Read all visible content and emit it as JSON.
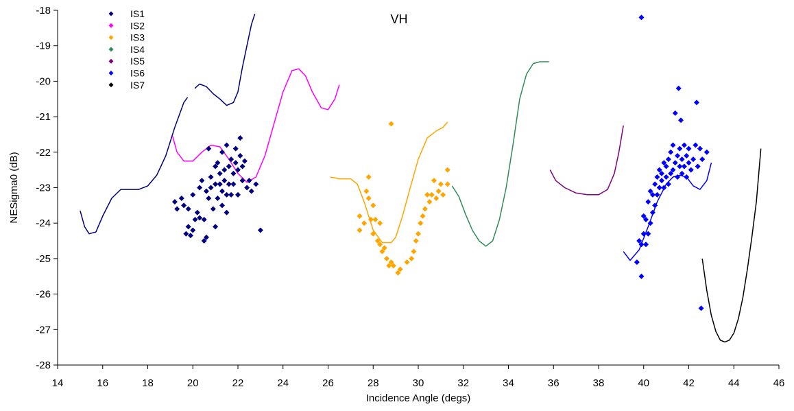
{
  "chart_data": {
    "type": "scatter",
    "title": "VH",
    "xlabel": "Incidence Angle (degs)",
    "ylabel": "NESigma0 (dB)",
    "xlim": [
      14,
      46
    ],
    "ylim": [
      -28,
      -18
    ],
    "xticks": [
      14,
      16,
      18,
      20,
      22,
      24,
      26,
      28,
      30,
      32,
      34,
      36,
      38,
      40,
      42,
      44,
      46
    ],
    "yticks": [
      -18,
      -19,
      -20,
      -21,
      -22,
      -23,
      -24,
      -25,
      -26,
      -27,
      -28
    ],
    "grid": false,
    "legend_position": "top-left",
    "legend": [
      {
        "name": "IS1",
        "color": "#000080"
      },
      {
        "name": "IS2",
        "color": "#ff00ff"
      },
      {
        "name": "IS3",
        "color": "#ffa500"
      },
      {
        "name": "IS4",
        "color": "#2e8b57"
      },
      {
        "name": "IS5",
        "color": "#800080"
      },
      {
        "name": "IS6",
        "color": "#0000ff"
      },
      {
        "name": "IS7",
        "color": "#000000"
      }
    ],
    "lines": [
      {
        "color": "#000080",
        "x": [
          15.0,
          15.2,
          15.4,
          15.7,
          16.0,
          16.4,
          16.8,
          17.2,
          17.6,
          18.0,
          18.4,
          18.8,
          19.2,
          19.6,
          20.0,
          20.3,
          20.6,
          20.9,
          21.2,
          21.5,
          21.8,
          22.0,
          22.2,
          22.4,
          22.6,
          22.75
        ],
        "y": [
          -23.65,
          -24.1,
          -24.3,
          -24.25,
          -23.8,
          -23.3,
          -23.05,
          -23.05,
          -23.05,
          -22.95,
          -22.65,
          -22.1,
          -21.3,
          -20.6,
          -20.25,
          -20.08,
          -20.15,
          -20.35,
          -20.5,
          -20.68,
          -20.6,
          -20.3,
          -19.6,
          -19.0,
          -18.4,
          -18.1
        ]
      },
      {
        "color": "#ff00ff",
        "x": [
          19.1,
          19.3,
          19.6,
          20.0,
          20.4,
          20.8,
          21.2,
          21.6,
          22.0,
          22.4,
          22.8,
          23.2,
          23.6,
          24.0,
          24.4,
          24.7,
          25.0,
          25.3,
          25.7,
          26.0,
          26.3,
          26.5
        ],
        "y": [
          -21.55,
          -22.0,
          -22.25,
          -22.25,
          -22.0,
          -21.8,
          -21.85,
          -22.2,
          -22.6,
          -22.85,
          -22.7,
          -22.1,
          -21.2,
          -20.3,
          -19.7,
          -19.65,
          -19.85,
          -20.3,
          -20.75,
          -20.8,
          -20.5,
          -20.1
        ]
      },
      {
        "color": "#ffa500",
        "x": [
          26.1,
          26.5,
          27.0,
          27.3,
          27.6,
          28.0,
          28.4,
          28.8,
          29.0,
          29.3,
          29.6,
          30.0,
          30.4,
          30.8,
          31.1,
          31.3
        ],
        "y": [
          -22.7,
          -22.75,
          -22.75,
          -22.9,
          -23.4,
          -24.2,
          -24.55,
          -24.55,
          -24.4,
          -23.8,
          -23.1,
          -22.2,
          -21.6,
          -21.4,
          -21.3,
          -21.15
        ]
      },
      {
        "color": "#2e8b57",
        "x": [
          31.5,
          31.8,
          32.1,
          32.4,
          32.7,
          33.0,
          33.3,
          33.6,
          33.9,
          34.2,
          34.5,
          34.8,
          35.1,
          35.4,
          35.6,
          35.8
        ],
        "y": [
          -22.95,
          -23.25,
          -23.75,
          -24.2,
          -24.5,
          -24.65,
          -24.5,
          -23.9,
          -23.0,
          -21.8,
          -20.5,
          -19.8,
          -19.5,
          -19.45,
          -19.45,
          -19.45
        ]
      },
      {
        "color": "#800080",
        "x": [
          35.85,
          36.1,
          36.5,
          37.0,
          37.5,
          38.0,
          38.4,
          38.7,
          38.9,
          39.1
        ],
        "y": [
          -22.5,
          -22.8,
          -23.0,
          -23.15,
          -23.2,
          -23.2,
          -23.05,
          -22.6,
          -22.0,
          -21.25
        ]
      },
      {
        "color": "#0000ff",
        "x": [
          39.1,
          39.4,
          39.8,
          40.2,
          40.6,
          41.0,
          41.3,
          41.6,
          41.9,
          42.2,
          42.5,
          42.8,
          43.0
        ],
        "y": [
          -24.8,
          -25.05,
          -24.75,
          -24.1,
          -23.4,
          -22.9,
          -22.7,
          -22.65,
          -22.7,
          -22.95,
          -23.05,
          -22.8,
          -22.3
        ]
      },
      {
        "color": "#000000",
        "x": [
          42.6,
          42.8,
          43.0,
          43.2,
          43.4,
          43.6,
          43.8,
          44.0,
          44.2,
          44.4,
          44.6,
          44.8,
          45.0,
          45.2
        ],
        "y": [
          -25.0,
          -25.9,
          -26.6,
          -27.05,
          -27.3,
          -27.35,
          -27.3,
          -27.1,
          -26.7,
          -26.1,
          -25.3,
          -24.4,
          -23.4,
          -21.9
        ]
      }
    ],
    "scatter": [
      {
        "color": "#000080",
        "points": [
          [
            19.2,
            -23.4
          ],
          [
            19.3,
            -23.6
          ],
          [
            19.5,
            -23.3
          ],
          [
            19.6,
            -23.5
          ],
          [
            19.7,
            -24.3
          ],
          [
            19.8,
            -24.1
          ],
          [
            19.8,
            -23.6
          ],
          [
            19.9,
            -24.35
          ],
          [
            20.0,
            -23.2
          ],
          [
            20.0,
            -24.2
          ],
          [
            20.1,
            -23.9
          ],
          [
            20.2,
            -23.7
          ],
          [
            20.3,
            -23.0
          ],
          [
            20.3,
            -23.85
          ],
          [
            20.4,
            -22.8
          ],
          [
            20.5,
            -23.9
          ],
          [
            20.5,
            -24.5
          ],
          [
            20.6,
            -23.1
          ],
          [
            20.6,
            -24.4
          ],
          [
            20.7,
            -21.9
          ],
          [
            20.7,
            -23.3
          ],
          [
            20.8,
            -22.7
          ],
          [
            20.8,
            -23.0
          ],
          [
            20.9,
            -23.6
          ],
          [
            21.0,
            -22.4
          ],
          [
            21.0,
            -22.9
          ],
          [
            21.0,
            -24.1
          ],
          [
            21.1,
            -22.3
          ],
          [
            21.1,
            -23.3
          ],
          [
            21.2,
            -22.6
          ],
          [
            21.2,
            -22.9
          ],
          [
            21.3,
            -22.0
          ],
          [
            21.3,
            -23.1
          ],
          [
            21.3,
            -23.5
          ],
          [
            21.4,
            -22.5
          ],
          [
            21.4,
            -22.8
          ],
          [
            21.5,
            -21.8
          ],
          [
            21.5,
            -23.2
          ],
          [
            21.5,
            -23.7
          ],
          [
            21.6,
            -22.4
          ],
          [
            21.6,
            -22.9
          ],
          [
            21.7,
            -22.2
          ],
          [
            21.7,
            -23.2
          ],
          [
            21.8,
            -22.6
          ],
          [
            21.8,
            -22.9
          ],
          [
            21.9,
            -21.9
          ],
          [
            21.9,
            -22.3
          ],
          [
            22.0,
            -22.5
          ],
          [
            22.0,
            -23.2
          ],
          [
            22.1,
            -21.6
          ],
          [
            22.1,
            -22.1
          ],
          [
            22.2,
            -22.4
          ],
          [
            22.2,
            -22.8
          ],
          [
            22.3,
            -22.25
          ],
          [
            22.4,
            -23.0
          ],
          [
            22.5,
            -22.8
          ],
          [
            22.6,
            -23.1
          ],
          [
            22.8,
            -22.9
          ],
          [
            23.0,
            -24.2
          ]
        ]
      },
      {
        "color": "#ffa500",
        "points": [
          [
            27.4,
            -23.8
          ],
          [
            27.4,
            -24.2
          ],
          [
            27.6,
            -24.0
          ],
          [
            27.7,
            -23.1
          ],
          [
            27.8,
            -22.7
          ],
          [
            27.8,
            -23.3
          ],
          [
            27.9,
            -23.9
          ],
          [
            28.0,
            -23.5
          ],
          [
            28.0,
            -24.3
          ],
          [
            28.1,
            -23.9
          ],
          [
            28.2,
            -24.5
          ],
          [
            28.3,
            -24.6
          ],
          [
            28.3,
            -24.0
          ],
          [
            28.4,
            -24.8
          ],
          [
            28.5,
            -24.7
          ],
          [
            28.6,
            -25.0
          ],
          [
            28.7,
            -25.2
          ],
          [
            28.8,
            -21.2
          ],
          [
            28.8,
            -25.1
          ],
          [
            28.9,
            -25.2
          ],
          [
            29.1,
            -25.4
          ],
          [
            29.2,
            -25.3
          ],
          [
            29.5,
            -25.1
          ],
          [
            29.7,
            -25.0
          ],
          [
            29.8,
            -24.8
          ],
          [
            29.9,
            -24.5
          ],
          [
            30.0,
            -24.3
          ],
          [
            30.1,
            -24.0
          ],
          [
            30.2,
            -23.8
          ],
          [
            30.3,
            -23.6
          ],
          [
            30.4,
            -23.2
          ],
          [
            30.5,
            -23.4
          ],
          [
            30.6,
            -23.2
          ],
          [
            30.7,
            -22.8
          ],
          [
            30.8,
            -23.3
          ],
          [
            30.9,
            -23.1
          ],
          [
            31.0,
            -22.9
          ],
          [
            31.1,
            -23.2
          ],
          [
            31.3,
            -22.5
          ],
          [
            31.3,
            -22.9
          ]
        ]
      },
      {
        "color": "#0000ff",
        "points": [
          [
            39.7,
            -25.1
          ],
          [
            39.8,
            -24.5
          ],
          [
            39.9,
            -25.5
          ],
          [
            39.9,
            -18.2
          ],
          [
            39.9,
            -24.6
          ],
          [
            40.0,
            -23.8
          ],
          [
            40.0,
            -24.3
          ],
          [
            40.1,
            -24.6
          ],
          [
            40.1,
            -23.9
          ],
          [
            40.2,
            -24.3
          ],
          [
            40.2,
            -23.4
          ],
          [
            40.3,
            -24.0
          ],
          [
            40.3,
            -23.1
          ],
          [
            40.4,
            -23.7
          ],
          [
            40.4,
            -23.2
          ],
          [
            40.5,
            -23.5
          ],
          [
            40.5,
            -22.9
          ],
          [
            40.6,
            -23.2
          ],
          [
            40.6,
            -22.7
          ],
          [
            40.7,
            -23.0
          ],
          [
            40.7,
            -22.5
          ],
          [
            40.8,
            -22.6
          ],
          [
            40.8,
            -22.8
          ],
          [
            40.9,
            -22.3
          ],
          [
            40.9,
            -23.0
          ],
          [
            41.0,
            -22.7
          ],
          [
            41.0,
            -22.4
          ],
          [
            41.1,
            -22.2
          ],
          [
            41.1,
            -22.9
          ],
          [
            41.2,
            -22.6
          ],
          [
            41.2,
            -22.0
          ],
          [
            41.3,
            -21.8
          ],
          [
            41.3,
            -22.5
          ],
          [
            41.4,
            -20.9
          ],
          [
            41.4,
            -22.3
          ],
          [
            41.5,
            -22.1
          ],
          [
            41.5,
            -22.7
          ],
          [
            41.55,
            -20.2
          ],
          [
            41.6,
            -22.4
          ],
          [
            41.6,
            -21.9
          ],
          [
            41.65,
            -21.1
          ],
          [
            41.7,
            -22.2
          ],
          [
            41.7,
            -22.6
          ],
          [
            41.8,
            -21.8
          ],
          [
            41.8,
            -22.4
          ],
          [
            41.9,
            -22.1
          ],
          [
            41.9,
            -22.7
          ],
          [
            42.0,
            -22.3
          ],
          [
            42.0,
            -21.9
          ],
          [
            42.1,
            -22.5
          ],
          [
            42.2,
            -22.2
          ],
          [
            42.3,
            -21.8
          ],
          [
            42.35,
            -20.6
          ],
          [
            42.4,
            -22.4
          ],
          [
            42.5,
            -21.9
          ],
          [
            42.55,
            -26.4
          ],
          [
            42.6,
            -22.2
          ],
          [
            42.8,
            -22.0
          ]
        ]
      }
    ]
  }
}
